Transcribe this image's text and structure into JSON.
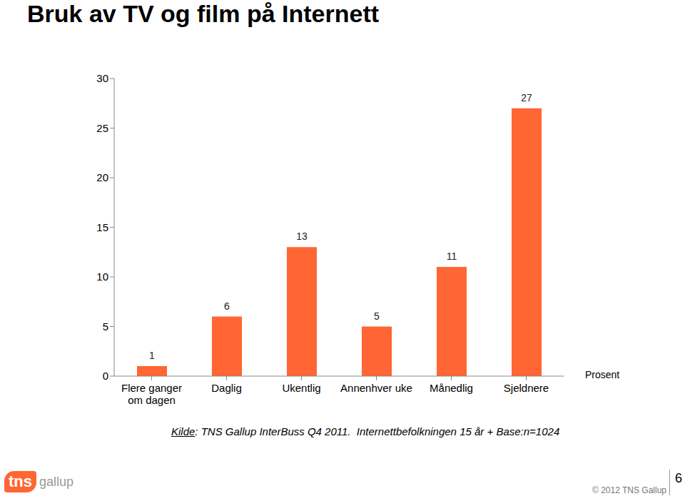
{
  "chart_data": {
    "type": "bar",
    "title": "Bruk av TV og film på Internett",
    "categories": [
      "Flere ganger om dagen",
      "Daglig",
      "Ukentlig",
      "Annenhver uke",
      "Månedlig",
      "Sjeldnere"
    ],
    "values": [
      1,
      6,
      13,
      5,
      11,
      27
    ],
    "color": "#ff6633",
    "ylim": [
      0,
      30
    ],
    "yticks": [
      0,
      5,
      10,
      15,
      20,
      25,
      30
    ],
    "grid": false,
    "data_labels": true,
    "x_label": "Prosent",
    "source": "Kilde: TNS Gallup InterBuss Q4 2011.  Internettbefolkningen 15 år + Base:n=1024",
    "footer": "© 2012 TNS Gallup",
    "page": "6",
    "logo": [
      "tns",
      "gallup"
    ]
  }
}
